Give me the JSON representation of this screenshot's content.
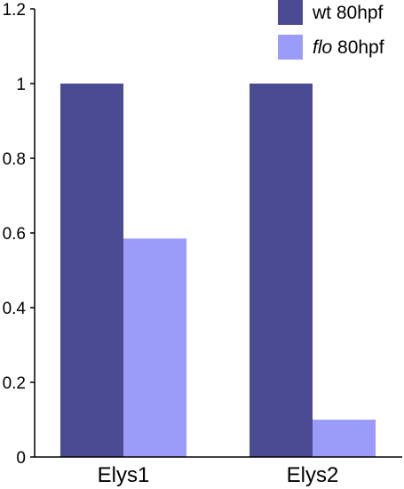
{
  "chart_data": {
    "type": "bar",
    "categories": [
      "Elys1",
      "Elys2"
    ],
    "series": [
      {
        "name": "wt 80hpf",
        "values": [
          1.0,
          1.0
        ],
        "color": "#4b4b93"
      },
      {
        "name": "flo 80hpf",
        "values": [
          0.585,
          0.1
        ],
        "color": "#9b9bfa"
      }
    ],
    "legend": [
      {
        "italic": "",
        "rest": "wt 80hpf"
      },
      {
        "italic": "flo",
        "rest": " 80hpf"
      }
    ],
    "yticks": [
      "0",
      "0.2",
      "0.4",
      "0.6",
      "0.8",
      "1",
      "1.2"
    ],
    "ylim": [
      0,
      1.2
    ],
    "grid": false,
    "legend_position": "top-right"
  }
}
